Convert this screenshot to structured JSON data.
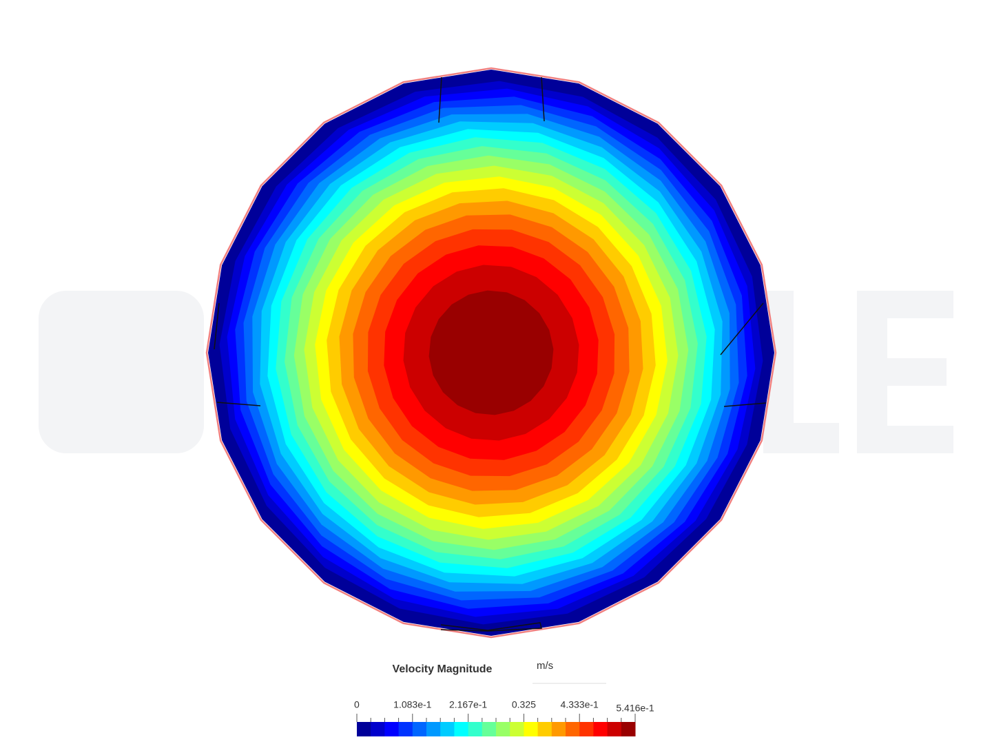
{
  "legend": {
    "title": "Velocity Magnitude",
    "unit": "m/s",
    "tick_labels": [
      "0",
      "1.083e-1",
      "2.167e-1",
      "0.325",
      "4.333e-1",
      "5.416e-1"
    ]
  }
}
